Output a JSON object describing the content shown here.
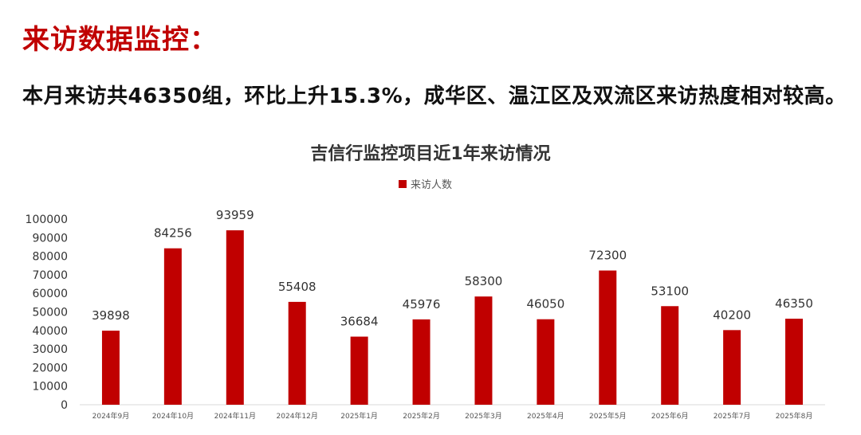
{
  "page": {
    "title": "来访数据监控：",
    "summary": "本月来访共46350组，环比上升15.3%，成华区、温江区及双流区来访热度相对较高。"
  },
  "colors": {
    "title": "#c00000",
    "bar": "#c00000",
    "text": "#333333",
    "axis": "#d9d9d9"
  },
  "chart_data": {
    "type": "bar",
    "title": "吉信行监控项目近1年来访情况",
    "legend": "top",
    "grid": false,
    "xlabel": "",
    "ylabel": "",
    "ylim": [
      0,
      100000
    ],
    "yticks": [
      0,
      10000,
      20000,
      30000,
      40000,
      50000,
      60000,
      70000,
      80000,
      90000,
      100000
    ],
    "categories": [
      "2024年9月",
      "2024年10月",
      "2024年11月",
      "2024年12月",
      "2025年1月",
      "2025年2月",
      "2025年3月",
      "2025年4月",
      "2025年5月",
      "2025年6月",
      "2025年7月",
      "2025年8月"
    ],
    "series": [
      {
        "name": "来访人数",
        "values": [
          39898,
          84256,
          93959,
          55408,
          36684,
          45976,
          58300,
          46050,
          72300,
          53100,
          40200,
          46350
        ]
      }
    ]
  }
}
